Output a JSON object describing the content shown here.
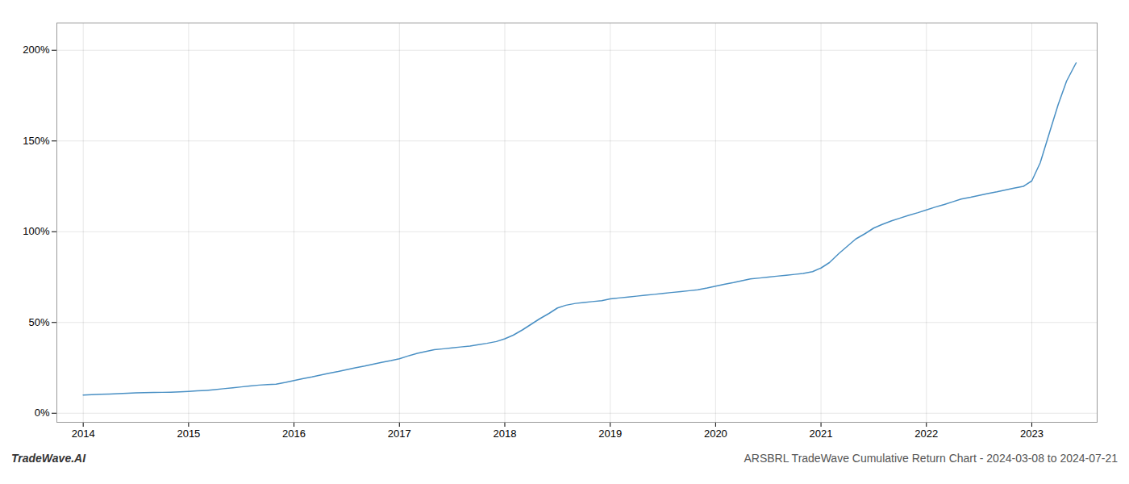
{
  "chart_data": {
    "type": "line",
    "title": "ARSBRL TradeWave Cumulative Return Chart - 2024-03-08 to 2024-07-21",
    "annotations": [
      "TradeWave.AI"
    ],
    "color": "#4a90c4",
    "grid": true,
    "x": [
      2014.0,
      2014.08,
      2014.17,
      2014.25,
      2014.33,
      2014.42,
      2014.5,
      2014.58,
      2014.67,
      2014.75,
      2014.83,
      2014.92,
      2015.0,
      2015.08,
      2015.17,
      2015.25,
      2015.33,
      2015.42,
      2015.5,
      2015.58,
      2015.67,
      2015.75,
      2015.83,
      2015.92,
      2016.0,
      2016.08,
      2016.17,
      2016.25,
      2016.33,
      2016.42,
      2016.5,
      2016.58,
      2016.67,
      2016.75,
      2016.83,
      2016.92,
      2017.0,
      2017.08,
      2017.17,
      2017.25,
      2017.33,
      2017.42,
      2017.5,
      2017.58,
      2017.67,
      2017.75,
      2017.83,
      2017.92,
      2018.0,
      2018.08,
      2018.17,
      2018.25,
      2018.33,
      2018.42,
      2018.5,
      2018.58,
      2018.67,
      2018.75,
      2018.83,
      2018.92,
      2019.0,
      2019.08,
      2019.17,
      2019.25,
      2019.33,
      2019.42,
      2019.5,
      2019.58,
      2019.67,
      2019.75,
      2019.83,
      2019.92,
      2020.0,
      2020.08,
      2020.17,
      2020.25,
      2020.33,
      2020.42,
      2020.5,
      2020.58,
      2020.67,
      2020.75,
      2020.83,
      2020.92,
      2021.0,
      2021.08,
      2021.17,
      2021.25,
      2021.33,
      2021.42,
      2021.5,
      2021.58,
      2021.67,
      2021.75,
      2021.83,
      2021.92,
      2022.0,
      2022.08,
      2022.17,
      2022.25,
      2022.33,
      2022.42,
      2022.5,
      2022.58,
      2022.67,
      2022.75,
      2022.83,
      2022.92,
      2023.0,
      2023.08,
      2023.17,
      2023.25,
      2023.33,
      2023.42
    ],
    "values": [
      10,
      10.2,
      10.4,
      10.6,
      10.8,
      11.0,
      11.2,
      11.3,
      11.4,
      11.5,
      11.6,
      11.8,
      12.0,
      12.3,
      12.6,
      13.0,
      13.5,
      14.0,
      14.5,
      15.0,
      15.5,
      15.8,
      16.0,
      17.0,
      18.0,
      19.0,
      20.0,
      21.0,
      22.0,
      23.0,
      24.0,
      25.0,
      26.0,
      27.0,
      28.0,
      29.0,
      30.0,
      31.5,
      33.0,
      34.0,
      35.0,
      35.5,
      36.0,
      36.5,
      37.0,
      37.8,
      38.5,
      39.5,
      41.0,
      43.0,
      46.0,
      49.0,
      52.0,
      55.0,
      58.0,
      59.5,
      60.5,
      61.0,
      61.5,
      62.0,
      63.0,
      63.5,
      64.0,
      64.5,
      65.0,
      65.5,
      66.0,
      66.5,
      67.0,
      67.5,
      68.0,
      69.0,
      70.0,
      71.0,
      72.0,
      73.0,
      74.0,
      74.5,
      75.0,
      75.5,
      76.0,
      76.5,
      77.0,
      78.0,
      80.0,
      83.0,
      88.0,
      92.0,
      96.0,
      99.0,
      102.0,
      104.0,
      106.0,
      107.5,
      109.0,
      110.5,
      112.0,
      113.5,
      115.0,
      116.5,
      118.0,
      119.0,
      120.0,
      121.0,
      122.0,
      123.0,
      124.0,
      125.0,
      128.0,
      138.0,
      155.0,
      170.0,
      183.0,
      193.0
    ],
    "xlim": [
      2013.75,
      2023.62
    ],
    "xticks": [
      2014,
      2015,
      2016,
      2017,
      2018,
      2019,
      2020,
      2021,
      2022,
      2023
    ],
    "ylim": [
      -5,
      215
    ],
    "yticks": [
      {
        "value": 0,
        "label": "0%"
      },
      {
        "value": 50,
        "label": "50%"
      },
      {
        "value": 100,
        "label": "100%"
      },
      {
        "value": 150,
        "label": "150%"
      },
      {
        "value": 200,
        "label": "200%"
      }
    ]
  }
}
